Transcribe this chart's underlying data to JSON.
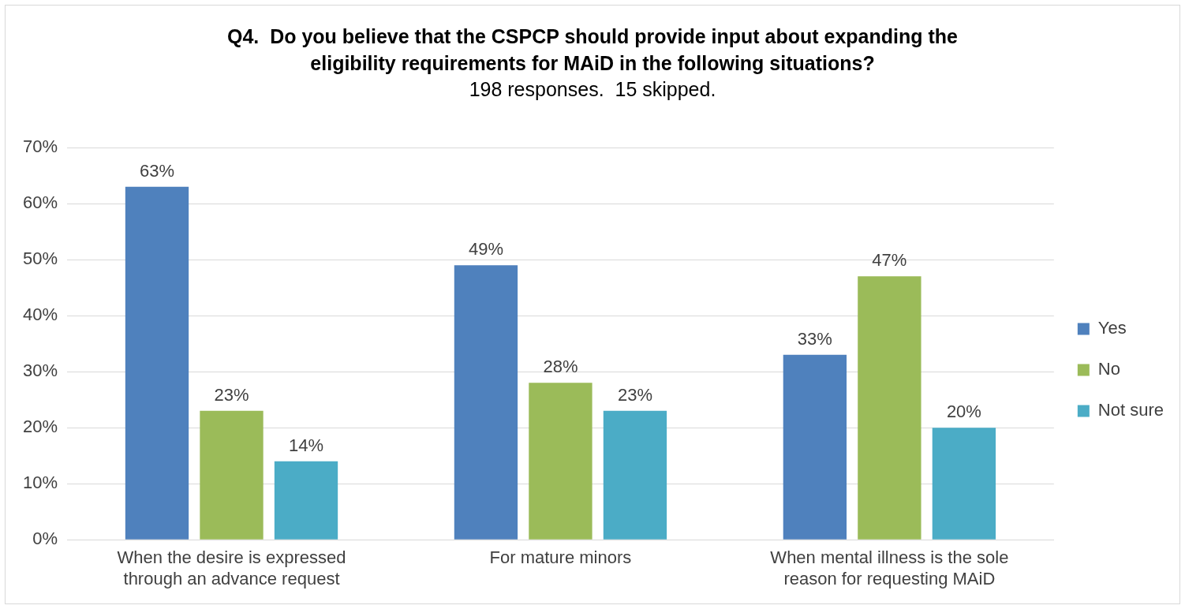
{
  "chart_data": {
    "type": "bar",
    "title": "Q4.  Do you believe that the CSPCP should provide input about expanding the eligibility requirements for MAiD in the following situations?",
    "subtitle": "198 responses.  15 skipped.",
    "categories": [
      "When the desire is expressed through an advance request",
      "For mature minors",
      "When mental illness is the sole reason for requesting MAiD"
    ],
    "series": [
      {
        "name": "Yes",
        "color": "#4f81bd",
        "values": [
          63,
          49,
          33
        ],
        "value_labels": [
          "63%",
          "49%",
          "33%"
        ]
      },
      {
        "name": "No",
        "color": "#9bbb59",
        "values": [
          23,
          28,
          47
        ],
        "value_labels": [
          "23%",
          "28%",
          "47%"
        ]
      },
      {
        "name": "Not sure",
        "color": "#4bacc6",
        "values": [
          14,
          23,
          20
        ],
        "value_labels": [
          "14%",
          "23%",
          "20%"
        ]
      }
    ],
    "ylim": [
      0,
      70
    ],
    "yticks": [
      {
        "value": 0,
        "label": "0%"
      },
      {
        "value": 10,
        "label": "10%"
      },
      {
        "value": 20,
        "label": "20%"
      },
      {
        "value": 30,
        "label": "30%"
      },
      {
        "value": 40,
        "label": "40%"
      },
      {
        "value": 50,
        "label": "50%"
      },
      {
        "value": 60,
        "label": "60%"
      },
      {
        "value": 70,
        "label": "70%"
      }
    ],
    "grid": "y",
    "legend": "right"
  }
}
